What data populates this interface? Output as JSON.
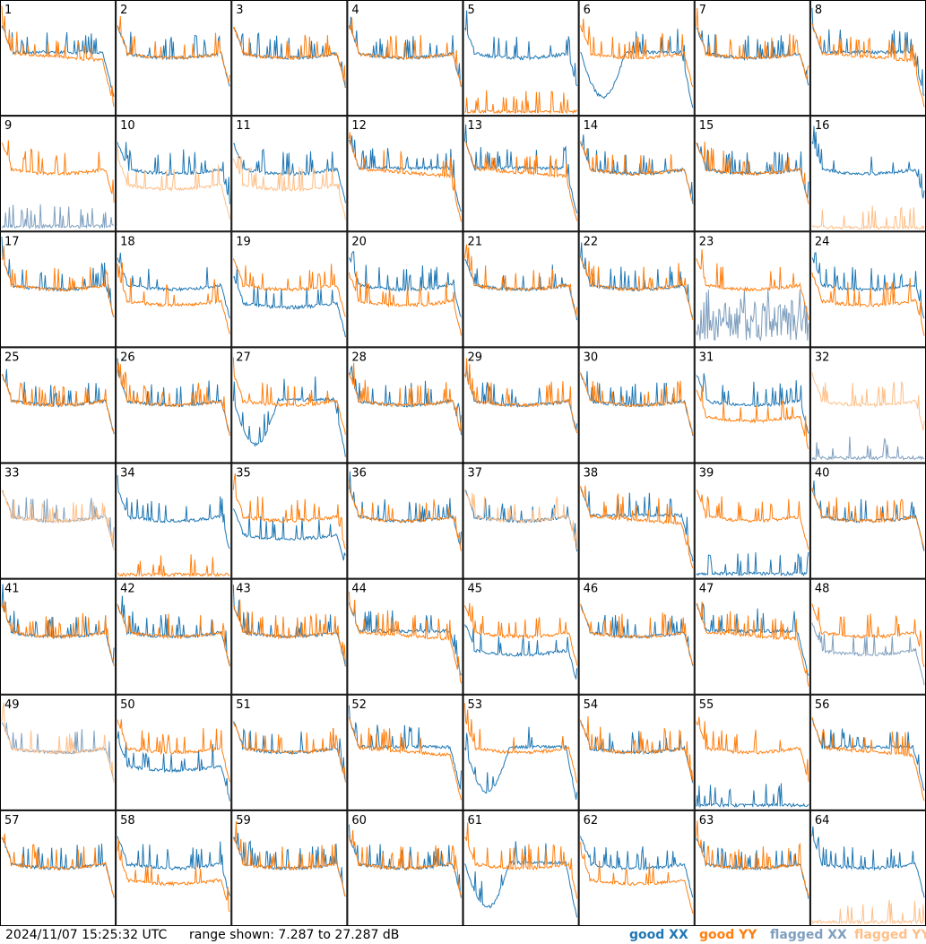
{
  "footer": {
    "timestamp": "2024/11/07 15:25:32 UTC",
    "range": "range shown: 7.287 to 27.287 dB",
    "legend": [
      {
        "key": "good_xx",
        "label": "good XX",
        "color": "#1f77b4"
      },
      {
        "key": "good_yy",
        "label": "good YY",
        "color": "#ff7f0e"
      },
      {
        "key": "flagged_xx",
        "label": "flagged XX",
        "color": "#7f9fbf"
      },
      {
        "key": "flagged_yy",
        "label": "flagged YY",
        "color": "#ffbf87"
      }
    ]
  },
  "chart_data": {
    "type": "line",
    "grid": {
      "rows": 8,
      "cols": 8
    },
    "ylim": [
      7.287,
      27.287
    ],
    "y_units": "dB",
    "series_colors": {
      "good_xx": "#1f77b4",
      "good_yy": "#ff7f0e",
      "flagged_xx": "#7f9fbf",
      "flagged_yy": "#ffbf87"
    },
    "panels": [
      {
        "label": "1",
        "xx": "good",
        "yy": "good",
        "shape": "tilt"
      },
      {
        "label": "2",
        "xx": "good",
        "yy": "good",
        "shape": "normal"
      },
      {
        "label": "3",
        "xx": "good",
        "yy": "good",
        "shape": "normal"
      },
      {
        "label": "4",
        "xx": "good",
        "yy": "good",
        "shape": "normal"
      },
      {
        "label": "5",
        "xx": "good",
        "yy": "good",
        "shape": "yy_dead"
      },
      {
        "label": "6",
        "xx": "good",
        "yy": "good",
        "shape": "xx_dip"
      },
      {
        "label": "7",
        "xx": "good",
        "yy": "good",
        "shape": "normal"
      },
      {
        "label": "8",
        "xx": "good",
        "yy": "good",
        "shape": "tilt"
      },
      {
        "label": "9",
        "xx": "flagged",
        "yy": "good",
        "shape": "xx_dead"
      },
      {
        "label": "10",
        "xx": "good",
        "yy": "flagged",
        "shape": "split_yy_low"
      },
      {
        "label": "11",
        "xx": "good",
        "yy": "flagged",
        "shape": "split_yy_low"
      },
      {
        "label": "12",
        "xx": "good",
        "yy": "good",
        "shape": "tilt"
      },
      {
        "label": "13",
        "xx": "good",
        "yy": "good",
        "shape": "tilt"
      },
      {
        "label": "14",
        "xx": "good",
        "yy": "good",
        "shape": "normal"
      },
      {
        "label": "15",
        "xx": "good",
        "yy": "good",
        "shape": "normal"
      },
      {
        "label": "16",
        "xx": "good",
        "yy": "flagged",
        "shape": "yy_dead"
      },
      {
        "label": "17",
        "xx": "good",
        "yy": "good",
        "shape": "normal"
      },
      {
        "label": "18",
        "xx": "good",
        "yy": "good",
        "shape": "split_yy_low"
      },
      {
        "label": "19",
        "xx": "good",
        "yy": "good",
        "shape": "split_xx_low"
      },
      {
        "label": "20",
        "xx": "good",
        "yy": "good",
        "shape": "split_yy_low"
      },
      {
        "label": "21",
        "xx": "good",
        "yy": "good",
        "shape": "normal"
      },
      {
        "label": "22",
        "xx": "good",
        "yy": "good",
        "shape": "normal"
      },
      {
        "label": "23",
        "xx": "flagged",
        "yy": "good",
        "shape": "xx_noise"
      },
      {
        "label": "24",
        "xx": "good",
        "yy": "good",
        "shape": "split_yy_low"
      },
      {
        "label": "25",
        "xx": "good",
        "yy": "good",
        "shape": "normal"
      },
      {
        "label": "26",
        "xx": "good",
        "yy": "good",
        "shape": "normal"
      },
      {
        "label": "27",
        "xx": "good",
        "yy": "good",
        "shape": "xx_dip"
      },
      {
        "label": "28",
        "xx": "good",
        "yy": "good",
        "shape": "normal"
      },
      {
        "label": "29",
        "xx": "good",
        "yy": "good",
        "shape": "normal"
      },
      {
        "label": "30",
        "xx": "good",
        "yy": "good",
        "shape": "normal"
      },
      {
        "label": "31",
        "xx": "good",
        "yy": "good",
        "shape": "split_yy_low"
      },
      {
        "label": "32",
        "xx": "flagged",
        "yy": "flagged",
        "shape": "xx_dead_yy_flag"
      },
      {
        "label": "33",
        "xx": "flagged",
        "yy": "flagged",
        "shape": "normal"
      },
      {
        "label": "34",
        "xx": "good",
        "yy": "good",
        "shape": "yy_dead"
      },
      {
        "label": "35",
        "xx": "good",
        "yy": "good",
        "shape": "split_xx_low"
      },
      {
        "label": "36",
        "xx": "good",
        "yy": "good",
        "shape": "normal"
      },
      {
        "label": "37",
        "xx": "good",
        "yy": "flagged",
        "shape": "normal"
      },
      {
        "label": "38",
        "xx": "good",
        "yy": "good",
        "shape": "tilt"
      },
      {
        "label": "39",
        "xx": "good",
        "yy": "good",
        "shape": "xx_dead"
      },
      {
        "label": "40",
        "xx": "good",
        "yy": "good",
        "shape": "normal"
      },
      {
        "label": "41",
        "xx": "good",
        "yy": "good",
        "shape": "normal"
      },
      {
        "label": "42",
        "xx": "good",
        "yy": "good",
        "shape": "normal"
      },
      {
        "label": "43",
        "xx": "good",
        "yy": "good",
        "shape": "normal"
      },
      {
        "label": "44",
        "xx": "good",
        "yy": "good",
        "shape": "tilt"
      },
      {
        "label": "45",
        "xx": "good",
        "yy": "good",
        "shape": "split_xx_low"
      },
      {
        "label": "46",
        "xx": "good",
        "yy": "good",
        "shape": "normal"
      },
      {
        "label": "47",
        "xx": "good",
        "yy": "good",
        "shape": "tilt"
      },
      {
        "label": "48",
        "xx": "flagged",
        "yy": "good",
        "shape": "split_xx_low"
      },
      {
        "label": "49",
        "xx": "flagged",
        "yy": "flagged",
        "shape": "normal"
      },
      {
        "label": "50",
        "xx": "good",
        "yy": "good",
        "shape": "split_xx_low"
      },
      {
        "label": "51",
        "xx": "good",
        "yy": "good",
        "shape": "normal"
      },
      {
        "label": "52",
        "xx": "good",
        "yy": "good",
        "shape": "tilt"
      },
      {
        "label": "53",
        "xx": "good",
        "yy": "good",
        "shape": "xx_dip"
      },
      {
        "label": "54",
        "xx": "good",
        "yy": "good",
        "shape": "normal"
      },
      {
        "label": "55",
        "xx": "good",
        "yy": "good",
        "shape": "xx_dead"
      },
      {
        "label": "56",
        "xx": "good",
        "yy": "good",
        "shape": "tilt"
      },
      {
        "label": "57",
        "xx": "good",
        "yy": "good",
        "shape": "normal"
      },
      {
        "label": "58",
        "xx": "good",
        "yy": "good",
        "shape": "split_yy_low"
      },
      {
        "label": "59",
        "xx": "good",
        "yy": "good",
        "shape": "normal"
      },
      {
        "label": "60",
        "xx": "good",
        "yy": "good",
        "shape": "normal"
      },
      {
        "label": "61",
        "xx": "good",
        "yy": "good",
        "shape": "xx_dip"
      },
      {
        "label": "62",
        "xx": "good",
        "yy": "good",
        "shape": "split_yy_low"
      },
      {
        "label": "63",
        "xx": "good",
        "yy": "good",
        "shape": "normal"
      },
      {
        "label": "64",
        "xx": "good",
        "yy": "flagged",
        "shape": "yy_dead"
      }
    ]
  }
}
